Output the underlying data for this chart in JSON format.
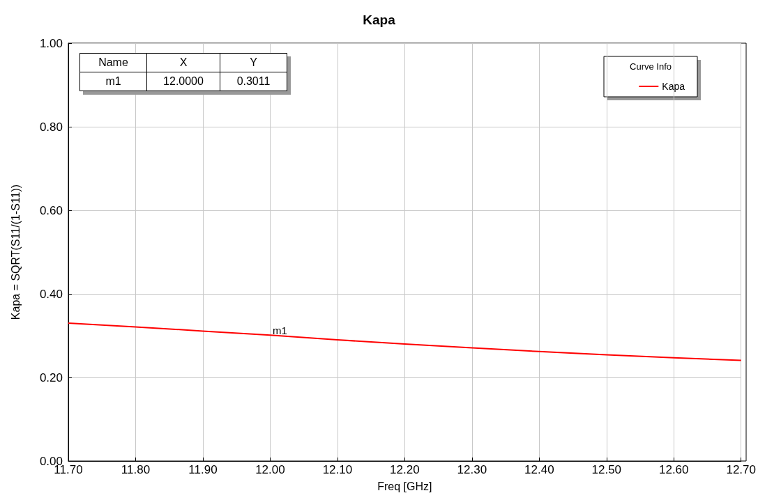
{
  "chart_data": {
    "type": "line",
    "title": "Kapa",
    "xlabel": "Freq [GHz]",
    "ylabel": "Kapa = SQRT(S11/(1-S11))",
    "legend_title": "Curve Info",
    "legend": "top right",
    "grid": true,
    "marker": "none",
    "line_style": "solid",
    "x": [
      11.7,
      11.8,
      11.9,
      12.0,
      12.1,
      12.2,
      12.3,
      12.4,
      12.5,
      12.6,
      12.7
    ],
    "series": [
      {
        "name": "Kapa",
        "color": "#ff0000",
        "values": [
          0.33,
          0.321,
          0.311,
          0.3011,
          0.29,
          0.28,
          0.271,
          0.262,
          0.254,
          0.247,
          0.241
        ]
      }
    ],
    "xlim": [
      11.7,
      12.7
    ],
    "xticks": [
      {
        "value": 11.7,
        "label": "11.70"
      },
      {
        "value": 11.8,
        "label": "11.80"
      },
      {
        "value": 11.9,
        "label": "11.90"
      },
      {
        "value": 12.0,
        "label": "12.00"
      },
      {
        "value": 12.1,
        "label": "12.10"
      },
      {
        "value": 12.2,
        "label": "12.20"
      },
      {
        "value": 12.3,
        "label": "12.30"
      },
      {
        "value": 12.4,
        "label": "12.40"
      },
      {
        "value": 12.5,
        "label": "12.50"
      },
      {
        "value": 12.6,
        "label": "12.60"
      },
      {
        "value": 12.7,
        "label": "12.70"
      }
    ],
    "ylim": [
      0,
      1
    ],
    "yticks": [
      {
        "value": 0,
        "label": "0.00"
      },
      {
        "value": 0.2,
        "label": "0.20"
      },
      {
        "value": 0.4,
        "label": "0.40"
      },
      {
        "value": 0.6,
        "label": "0.60"
      },
      {
        "value": 0.8,
        "label": "0.80"
      },
      {
        "value": 1,
        "label": "1.00"
      }
    ],
    "annotations": [
      {
        "text": "m1",
        "x": 12.0,
        "y": 0.3011
      },
      "Name",
      "X",
      "Y",
      "m1",
      "12.0000",
      "0.3011"
    ]
  }
}
